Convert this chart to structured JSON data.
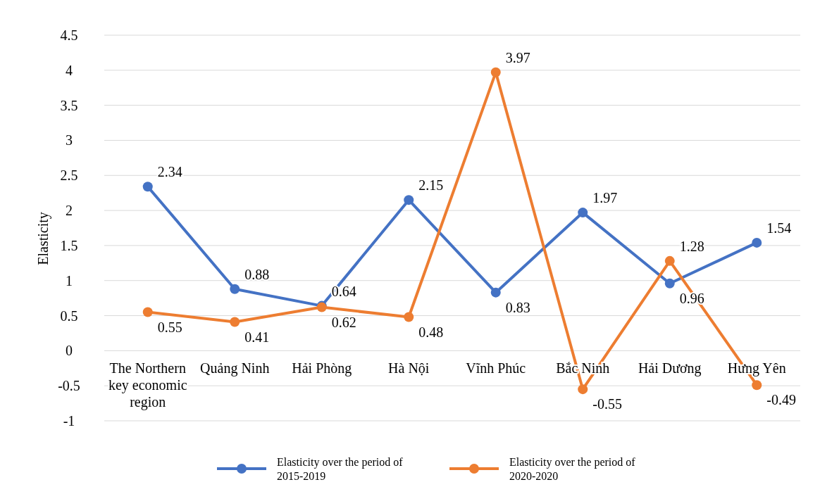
{
  "chart_data": {
    "type": "line",
    "ylabel": "Elasticity",
    "categories": [
      "The Northern key economic region",
      "Quảng Ninh",
      "Hải Phòng",
      "Hà Nội",
      "Vĩnh Phúc",
      "Bắc Ninh",
      "Hải Dương",
      "Hưng Yên"
    ],
    "series": [
      {
        "name": "Elasticity over the period of 2015-2019",
        "color": "#4472c4",
        "values": [
          2.34,
          0.88,
          0.64,
          2.15,
          0.83,
          1.97,
          0.96,
          1.54
        ]
      },
      {
        "name": "Elasticity over the period of 2020-2020",
        "color": "#ed7d31",
        "values": [
          0.55,
          0.41,
          0.62,
          0.48,
          3.97,
          -0.55,
          1.28,
          -0.49
        ]
      }
    ],
    "ylim": [
      -1,
      4.5
    ],
    "yticks": [
      -1,
      -0.5,
      0,
      0.5,
      1,
      1.5,
      2,
      2.5,
      3,
      3.5,
      4,
      4.5
    ],
    "grid": "y",
    "legend": "bottom",
    "marker": "circle",
    "line_style": "solid",
    "data_labels": true
  }
}
